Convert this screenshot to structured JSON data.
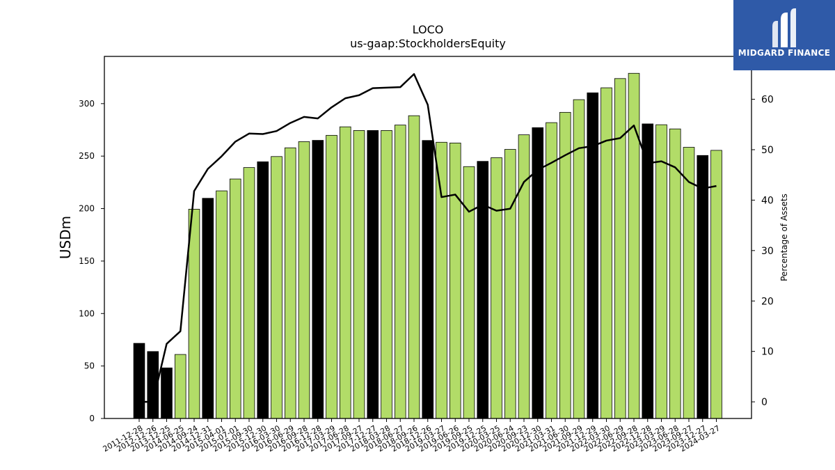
{
  "brand": {
    "name": "MIDGARD FINANCE",
    "logo_icon": "midgard-logo-icon",
    "background": "#2f5aa8"
  },
  "chart_data": {
    "type": "bar",
    "title": "LOCO",
    "subtitle": "us-gaap:StockholdersEquity",
    "ylabel": "USDm",
    "y2label": "Percentage of Assets",
    "ylim": [
      0,
      345
    ],
    "y2lim": [
      -3.3,
      68.5
    ],
    "yticks": [
      0,
      50,
      100,
      150,
      200,
      250,
      300
    ],
    "y2ticks": [
      0,
      10,
      20,
      30,
      40,
      50,
      60
    ],
    "grid": false,
    "colors": {
      "annual_bar": "#000000",
      "quarterly_bar": "#b2dc68",
      "line": "#000000"
    },
    "categories": [
      "2011-12-28",
      "2012-12-26",
      "2013-12-25",
      "2014-06-25",
      "2014-09-24",
      "2014-12-31",
      "2015-04-01",
      "2015-07-01",
      "2015-09-30",
      "2015-12-30",
      "2016-03-30",
      "2016-06-29",
      "2016-09-28",
      "2016-12-28",
      "2017-03-29",
      "2017-06-28",
      "2017-09-27",
      "2017-12-27",
      "2018-03-28",
      "2018-06-27",
      "2018-09-26",
      "2018-12-26",
      "2019-03-27",
      "2019-06-26",
      "2019-09-25",
      "2019-12-25",
      "2020-03-25",
      "2020-06-24",
      "2020-09-23",
      "2020-12-30",
      "2021-03-31",
      "2021-06-30",
      "2021-09-29",
      "2021-12-29",
      "2022-03-30",
      "2022-06-29",
      "2022-09-28",
      "2022-12-28",
      "2023-03-29",
      "2023-06-28",
      "2023-09-27",
      "2023-12-27",
      "2024-03-27"
    ],
    "series": [
      {
        "name": "",
        "values": [
          71.6,
          63.8,
          48.2,
          61,
          199.4,
          209.8,
          216.9,
          228.2,
          239.1,
          244.6,
          249.6,
          257.9,
          263.8,
          265,
          269.8,
          277.9,
          274.4,
          274.4,
          274.4,
          279.6,
          288.5,
          264.9,
          263.2,
          262.5,
          240,
          245,
          248.5,
          256.4,
          270.3,
          277.1,
          281.9,
          291.7,
          303.8,
          310.3,
          315.1,
          323.9,
          328.9,
          280.7,
          279.9,
          275.9,
          258.4,
          250.6,
          255.5
        ],
        "annual": [
          true,
          true,
          true,
          false,
          false,
          true,
          false,
          false,
          false,
          true,
          false,
          false,
          false,
          true,
          false,
          false,
          false,
          true,
          false,
          false,
          false,
          true,
          false,
          false,
          false,
          true,
          false,
          false,
          false,
          true,
          false,
          false,
          false,
          true,
          false,
          false,
          false,
          true,
          false,
          false,
          false,
          true,
          false
        ]
      },
      {
        "name": "",
        "axis": "right",
        "values": [
          0,
          0,
          11.5,
          14,
          41.8,
          46.2,
          48.7,
          51.6,
          53.2,
          53.1,
          53.7,
          55.3,
          56.5,
          56.2,
          58.4,
          60.2,
          60.8,
          62.2,
          62.3,
          62.4,
          65,
          58.9,
          40.6,
          41.1,
          37.7,
          39.1,
          37.9,
          38.3,
          43.6,
          46,
          47.4,
          48.9,
          50.3,
          50.7,
          51.8,
          52.3,
          54.8,
          47.3,
          47.7,
          46.5,
          43.6,
          42.3,
          42.8
        ]
      }
    ]
  }
}
